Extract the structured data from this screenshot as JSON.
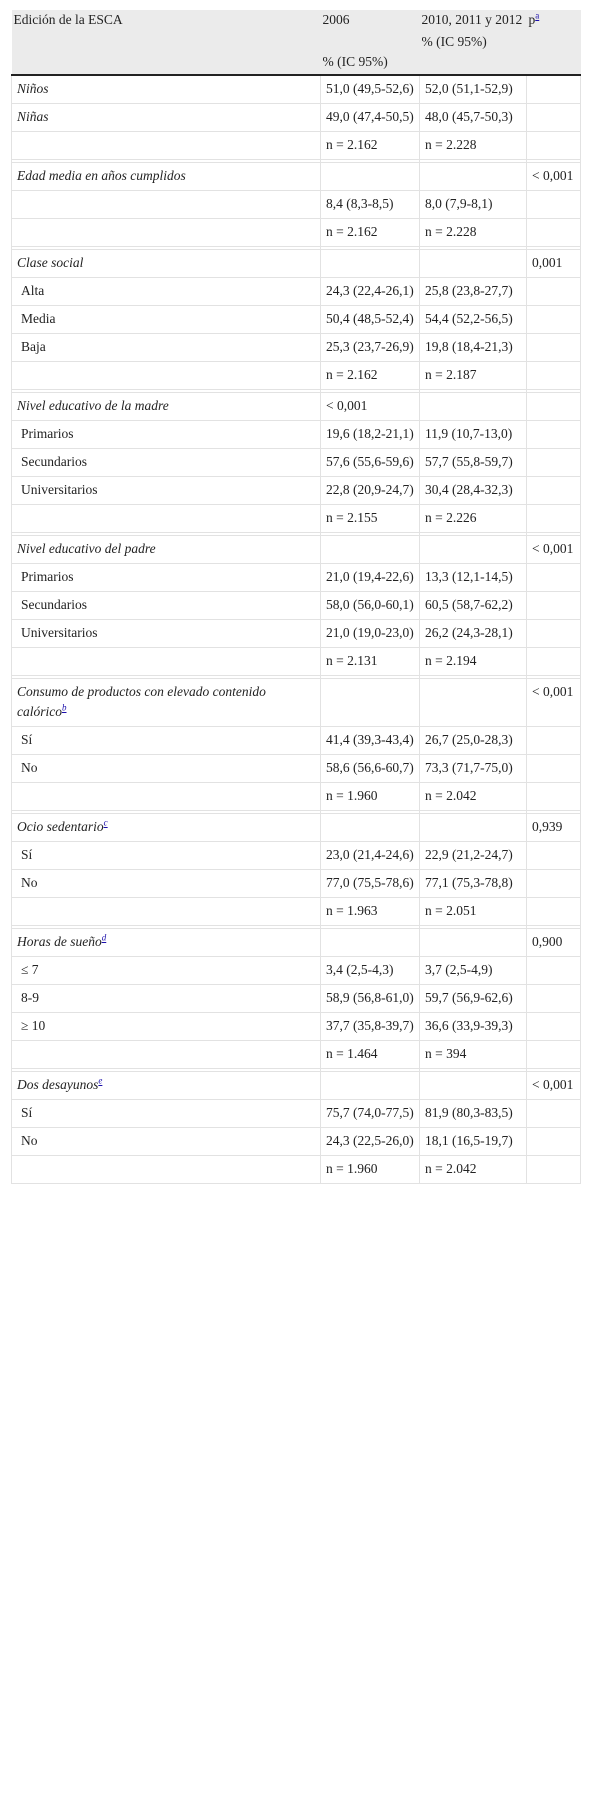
{
  "header": {
    "col1": "Edición de la ESCA",
    "col2_top": "2006",
    "col2_sub": "% (IC 95%)",
    "col3_top": "2010, 2011 y 2012",
    "col3_sub": "% (IC 95%)",
    "col4": "p",
    "col4_sup": "a"
  },
  "sections": [
    {
      "title": "Niños",
      "title_sup": "",
      "p": "",
      "rows": [],
      "title_row_values": [
        "51,0 (49,5-52,6)",
        "52,0 (51,1-52,9)"
      ]
    }
  ],
  "rows": [
    {
      "label": "Niños",
      "italic": true,
      "sup": "",
      "c2": "51,0 (49,5-52,6)",
      "c3": "52,0 (51,1-52,9)",
      "p": ""
    },
    {
      "label": "Niñas",
      "italic": true,
      "sup": "",
      "c2": "49,0 (47,4-50,5)",
      "c3": "48,0 (45,7-50,3)",
      "p": ""
    },
    {
      "label": "",
      "italic": false,
      "sup": "",
      "c2": "n = 2.162",
      "c3": "n = 2.228",
      "p": ""
    },
    {
      "spacer": true
    },
    {
      "label": "Edad media en años cumplidos",
      "italic": true,
      "sup": "",
      "c2": "",
      "c3": "",
      "p": "< 0,001"
    },
    {
      "label": "",
      "italic": false,
      "sup": "",
      "c2": "8,4 (8,3-8,5)",
      "c3": "8,0 (7,9-8,1)",
      "p": ""
    },
    {
      "label": "",
      "italic": false,
      "sup": "",
      "c2": "n = 2.162",
      "c3": "n = 2.228",
      "p": ""
    },
    {
      "spacer": true
    },
    {
      "label": "Clase social",
      "italic": true,
      "sup": "",
      "c2": "",
      "c3": "",
      "p": "0,001"
    },
    {
      "label": "Alta",
      "italic": false,
      "sup": "",
      "c2": "24,3 (22,4-26,1)",
      "c3": "25,8 (23,8-27,7)",
      "p": ""
    },
    {
      "label": "Media",
      "italic": false,
      "sup": "",
      "c2": "50,4 (48,5-52,4)",
      "c3": "54,4 (52,2-56,5)",
      "p": ""
    },
    {
      "label": "Baja",
      "italic": false,
      "sup": "",
      "c2": "25,3 (23,7-26,9)",
      "c3": "19,8 (18,4-21,3)",
      "p": ""
    },
    {
      "label": "",
      "italic": false,
      "sup": "",
      "c2": "n = 2.162",
      "c3": "n = 2.187",
      "p": ""
    },
    {
      "spacer": true
    },
    {
      "label": "Nivel educativo de la madre",
      "italic": true,
      "sup": "",
      "c2": "< 0,001",
      "c3": "",
      "p": ""
    },
    {
      "label": "Primarios",
      "italic": false,
      "sup": "",
      "c2": "19,6 (18,2-21,1)",
      "c3": "11,9 (10,7-13,0)",
      "p": ""
    },
    {
      "label": "Secundarios",
      "italic": false,
      "sup": "",
      "c2": "57,6 (55,6-59,6)",
      "c3": "57,7 (55,8-59,7)",
      "p": ""
    },
    {
      "label": "Universitarios",
      "italic": false,
      "sup": "",
      "c2": "22,8 (20,9-24,7)",
      "c3": "30,4 (28,4-32,3)",
      "p": ""
    },
    {
      "label": "",
      "italic": false,
      "sup": "",
      "c2": "n = 2.155",
      "c3": "n = 2.226",
      "p": ""
    },
    {
      "spacer": true
    },
    {
      "label": "Nivel educativo del padre",
      "italic": true,
      "sup": "",
      "c2": "",
      "c3": "",
      "p": "< 0,001"
    },
    {
      "label": "Primarios",
      "italic": false,
      "sup": "",
      "c2": "21,0 (19,4-22,6)",
      "c3": "13,3 (12,1-14,5)",
      "p": ""
    },
    {
      "label": "Secundarios",
      "italic": false,
      "sup": "",
      "c2": "58,0 (56,0-60,1)",
      "c3": "60,5 (58,7-62,2)",
      "p": ""
    },
    {
      "label": "Universitarios",
      "italic": false,
      "sup": "",
      "c2": "21,0 (19,0-23,0)",
      "c3": "26,2 (24,3-28,1)",
      "p": ""
    },
    {
      "label": "",
      "italic": false,
      "sup": "",
      "c2": "n = 2.131",
      "c3": "n = 2.194",
      "p": ""
    },
    {
      "spacer": true
    },
    {
      "label": "Consumo de productos con elevado contenido calórico",
      "italic": true,
      "sup": "b",
      "c2": "",
      "c3": "",
      "p": "< 0,001"
    },
    {
      "label": "Sí",
      "italic": false,
      "sup": "",
      "c2": "41,4 (39,3-43,4)",
      "c3": "26,7 (25,0-28,3)",
      "p": ""
    },
    {
      "label": "No",
      "italic": false,
      "sup": "",
      "c2": "58,6 (56,6-60,7)",
      "c3": "73,3 (71,7-75,0)",
      "p": ""
    },
    {
      "label": "",
      "italic": false,
      "sup": "",
      "c2": "n = 1.960",
      "c3": "n = 2.042",
      "p": ""
    },
    {
      "spacer": true
    },
    {
      "label": "Ocio sedentario",
      "italic": true,
      "sup": "c",
      "c2": "",
      "c3": "",
      "p": "0,939"
    },
    {
      "label": "Sí",
      "italic": false,
      "sup": "",
      "c2": "23,0 (21,4-24,6)",
      "c3": "22,9 (21,2-24,7)",
      "p": ""
    },
    {
      "label": "No",
      "italic": false,
      "sup": "",
      "c2": "77,0 (75,5-78,6)",
      "c3": "77,1 (75,3-78,8)",
      "p": ""
    },
    {
      "label": "",
      "italic": false,
      "sup": "",
      "c2": "n = 1.963",
      "c3": "n = 2.051",
      "p": ""
    },
    {
      "spacer": true
    },
    {
      "label": "Horas de sueño",
      "italic": true,
      "sup": "d",
      "c2": "",
      "c3": "",
      "p": "0,900"
    },
    {
      "label": "≤ 7",
      "italic": false,
      "sup": "",
      "c2": "3,4 (2,5-4,3)",
      "c3": "3,7 (2,5-4,9)",
      "p": ""
    },
    {
      "label": "8-9",
      "italic": false,
      "sup": "",
      "c2": "58,9 (56,8-61,0)",
      "c3": "59,7 (56,9-62,6)",
      "p": ""
    },
    {
      "label": "≥ 10",
      "italic": false,
      "sup": "",
      "c2": "37,7 (35,8-39,7)",
      "c3": "36,6 (33,9-39,3)",
      "p": ""
    },
    {
      "label": "",
      "italic": false,
      "sup": "",
      "c2": "n = 1.464",
      "c3": "n = 394",
      "p": ""
    },
    {
      "spacer": true
    },
    {
      "label": "Dos desayunos",
      "italic": true,
      "sup": "e",
      "c2": "",
      "c3": "",
      "p": "< 0,001"
    },
    {
      "label": "Sí",
      "italic": false,
      "sup": "",
      "c2": "75,7 (74,0-77,5)",
      "c3": "81,9 (80,3-83,5)",
      "p": ""
    },
    {
      "label": "No",
      "italic": false,
      "sup": "",
      "c2": "24,3 (22,5-26,0)",
      "c3": "18,1 (16,5-19,7)",
      "p": ""
    },
    {
      "label": "",
      "italic": false,
      "sup": "",
      "c2": "n = 1.960",
      "c3": "n = 2.042",
      "p": ""
    }
  ]
}
